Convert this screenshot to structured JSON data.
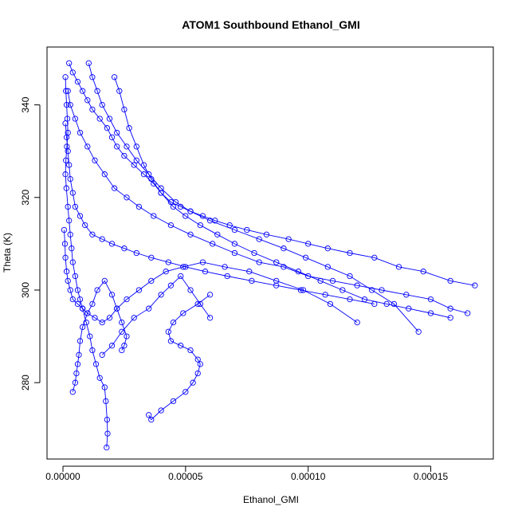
{
  "chart_data": {
    "type": "scatter",
    "title": "ATOM1 Southbound Ethanol_GMI",
    "xlabel": "Ethanol_GMI",
    "ylabel": "Theta (K)",
    "xlim": [
      -6.5e-06,
      0.0001755
    ],
    "ylim": [
      263.5,
      352.5
    ],
    "xticks": [
      0,
      5e-05,
      0.0001,
      0.00015
    ],
    "xtick_labels": [
      "0.00000",
      "0.00005",
      "0.00010",
      "0.00015"
    ],
    "yticks": [
      280,
      300,
      320,
      340
    ],
    "ytick_labels": [
      "280",
      "300",
      "320",
      "340"
    ],
    "grid": false,
    "legend": "none",
    "marker": "open-circle",
    "line": "connected",
    "color": "#0000ff",
    "series": [
      {
        "x": [
          1e-06,
          1.2e-06,
          1.5e-06,
          1.8e-06,
          2e-06,
          1.6e-06,
          1.2e-06,
          1e-06,
          1.4e-06,
          2e-06,
          2.5e-06,
          3e-06,
          3.5e-06,
          4e-06,
          5e-06,
          6e-06,
          7e-06,
          8e-06,
          9.5e-06,
          1.1e-05,
          1.2e-05,
          1.35e-05,
          1.5e-05,
          1.7e-05,
          1.75e-05,
          1.8e-05,
          1.82e-05,
          1.78e-05
        ],
        "y": [
          346,
          343,
          340,
          337,
          334,
          331,
          328,
          325,
          322,
          318,
          315,
          312,
          309,
          306,
          303,
          300,
          298,
          296,
          293,
          290,
          287,
          284,
          281,
          279,
          276,
          272,
          269,
          266
        ]
      },
      {
        "x": [
          2.5e-06,
          4e-06,
          6e-06,
          8e-06,
          1e-05,
          1.2e-05,
          1.5e-05,
          1.8e-05,
          2e-05,
          2.2e-05,
          2.5e-05,
          2.9e-05,
          3.3e-05,
          3.7e-05,
          4e-05,
          4.4e-05,
          4.8e-05,
          5.2e-05,
          5.7e-05,
          6.2e-05,
          6.8e-05,
          7.5e-05,
          8.3e-05,
          9.2e-05,
          0.0001,
          0.000108,
          0.000117,
          0.000127,
          0.000137,
          0.000147,
          0.000158,
          0.000168
        ],
        "y": [
          349,
          347,
          345,
          343,
          341,
          339,
          337,
          335,
          333,
          331,
          329,
          327,
          325,
          323,
          321,
          319,
          318,
          317,
          316,
          315,
          314,
          313,
          312,
          311,
          310,
          309,
          308,
          307,
          305,
          304,
          302,
          301
        ]
      },
      {
        "x": [
          1.05e-05,
          1.2e-05,
          1.4e-05,
          1.6e-05,
          1.9e-05,
          2.2e-05,
          2.6e-05,
          3e-05,
          3.5e-05,
          4e-05,
          4.6e-05,
          5.2e-05,
          6e-05,
          7e-05,
          8e-05,
          9e-05,
          9.9e-05,
          0.000108,
          0.000117,
          0.000126,
          0.000135,
          0.000145
        ],
        "y": [
          349,
          346,
          343,
          340,
          337,
          334,
          331,
          328,
          325,
          322,
          319,
          317,
          315,
          313,
          311,
          309,
          307,
          305,
          303,
          300,
          297,
          291
        ]
      },
      {
        "x": [
          2e-06,
          3e-06,
          5e-06,
          7e-06,
          1e-05,
          1.3e-05,
          1.7e-05,
          2.1e-05,
          2.6e-05,
          3.1e-05,
          3.7e-05,
          4.4e-05,
          5.2e-05,
          6.1e-05,
          7e-05,
          8e-05,
          9e-05,
          0.0001,
          0.00011,
          0.00012,
          0.00013,
          0.00014,
          0.00015,
          0.000158,
          0.000165
        ],
        "y": [
          343,
          340,
          337,
          334,
          331,
          328,
          325,
          322,
          320,
          318,
          316,
          314,
          312,
          310,
          308,
          306,
          305,
          303,
          302,
          301,
          300,
          299,
          298,
          296,
          295
        ]
      },
      {
        "x": [
          1e-06,
          1.5e-06,
          2e-06,
          2.5e-06,
          3e-06,
          4e-06,
          5e-06,
          7e-06,
          9e-06,
          1.2e-05,
          1.6e-05,
          2e-05,
          2.5e-05,
          3e-05,
          3.6e-05,
          4.3e-05,
          5e-05,
          5.8e-05,
          6.7e-05,
          7.7e-05,
          8.7e-05,
          9.7e-05,
          0.000107,
          0.000117,
          0.000127
        ],
        "y": [
          336,
          333,
          330,
          327,
          324,
          321,
          318,
          316,
          314,
          312,
          311,
          310,
          309,
          308,
          307,
          306,
          305,
          304,
          303,
          302,
          301,
          300,
          299,
          298,
          297
        ]
      },
      {
        "x": [
          2.1e-05,
          2.3e-05,
          2.5e-05,
          2.7e-05,
          3e-05,
          3.3e-05,
          3.6e-05,
          4e-05,
          4.5e-05,
          5e-05,
          5.6e-05,
          6.3e-05,
          7e-05,
          7.8e-05,
          8.7e-05,
          9.6e-05,
          0.000105,
          0.000114,
          0.000123,
          0.000132,
          0.000141,
          0.00015,
          0.000158
        ],
        "y": [
          346,
          343,
          339,
          335,
          331,
          327,
          324,
          321,
          318,
          316,
          314,
          312,
          310,
          308,
          306,
          304,
          302,
          300,
          298,
          297,
          296,
          295,
          294
        ]
      },
      {
        "x": [
          5e-07,
          8e-07,
          1e-06,
          1.5e-06,
          2e-06,
          3e-06,
          4e-06,
          6e-06,
          8e-06,
          1e-05,
          1.3e-05,
          1.6e-05,
          1.9e-05,
          2.2e-05,
          2.6e-05,
          3.1e-05,
          3.6e-05,
          4.2e-05,
          4.9e-05,
          5.7e-05,
          6.6e-05,
          7.6e-05,
          8.7e-05,
          9.8e-05,
          0.000109,
          0.00012
        ],
        "y": [
          313,
          310,
          307,
          304,
          302,
          300,
          298,
          297,
          296,
          295,
          294,
          293,
          294,
          296,
          298,
          300,
          302,
          304,
          305,
          306,
          305,
          304,
          302,
          300,
          297,
          293
        ]
      },
      {
        "x": [
          4e-06,
          5e-06,
          5.5e-06,
          6e-06,
          6.5e-06,
          7e-06,
          8e-06,
          1e-05,
          1.2e-05,
          1.4e-05,
          1.7e-05,
          2e-05,
          2.2e-05,
          2.4e-05,
          2.6e-05,
          2.5e-05,
          2.4e-05
        ],
        "y": [
          278,
          280,
          282,
          284,
          286,
          289,
          292,
          295,
          297,
          300,
          302,
          299,
          296,
          293,
          290,
          288,
          287
        ]
      },
      {
        "x": [
          3.5e-05,
          3.6e-05,
          4e-05,
          4.5e-05,
          5e-05,
          5.3e-05,
          5.5e-05,
          5.6e-05,
          5.5e-05,
          5.2e-05,
          4.8e-05,
          4.4e-05,
          4.3e-05,
          4.5e-05,
          4.9e-05,
          5.5e-05,
          6e-05
        ],
        "y": [
          273,
          272,
          274,
          276,
          278,
          280,
          282,
          284,
          285,
          287,
          288,
          289,
          291,
          293,
          295,
          297,
          299
        ]
      },
      {
        "x": [
          1.6e-05,
          2e-05,
          2.4e-05,
          2.9e-05,
          3.5e-05,
          4e-05,
          4.4e-05,
          4.8e-05,
          5.2e-05,
          5.6e-05,
          6e-05
        ],
        "y": [
          286,
          288,
          291,
          294,
          296,
          299,
          301,
          303,
          300,
          297,
          294
        ]
      }
    ]
  }
}
